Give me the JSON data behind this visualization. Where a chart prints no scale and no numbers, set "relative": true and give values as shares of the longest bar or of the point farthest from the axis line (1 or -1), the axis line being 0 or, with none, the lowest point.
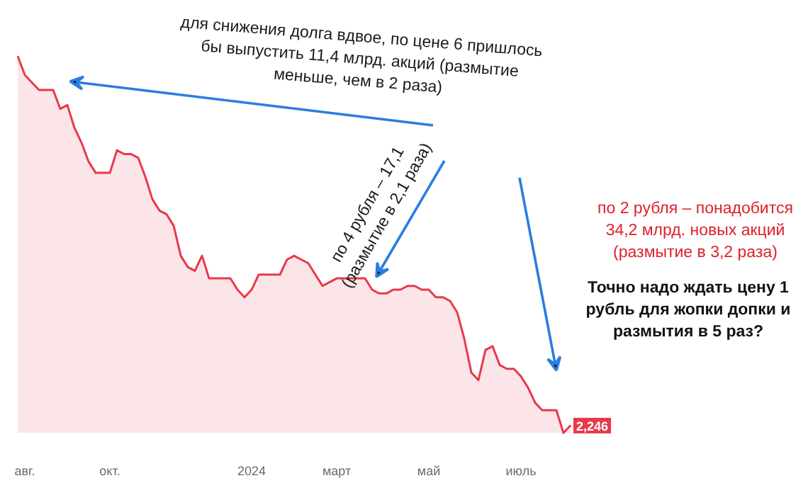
{
  "chart_data": {
    "type": "area",
    "relative": true,
    "color": "#e8394a",
    "categories": [
      null,
      "авг.",
      null,
      null,
      null,
      null,
      null,
      null,
      null,
      null,
      null,
      null,
      null,
      "окт.",
      null,
      null,
      null,
      null,
      null,
      null,
      null,
      null,
      null,
      null,
      null,
      null,
      null,
      null,
      null,
      null,
      null,
      null,
      null,
      "2024",
      null,
      null,
      null,
      null,
      null,
      null,
      null,
      null,
      null,
      null,
      null,
      "март",
      null,
      null,
      null,
      null,
      null,
      null,
      null,
      null,
      null,
      null,
      null,
      null,
      "май",
      null,
      null,
      null,
      null,
      null,
      null,
      null,
      null,
      null,
      null,
      null,
      null,
      "июль",
      null,
      null,
      null,
      null,
      null,
      null,
      null
    ],
    "values": [
      1.0,
      0.95,
      0.93,
      0.91,
      0.91,
      0.91,
      0.86,
      0.87,
      0.81,
      0.77,
      0.72,
      0.69,
      0.69,
      0.69,
      0.75,
      0.74,
      0.74,
      0.73,
      0.68,
      0.62,
      0.59,
      0.58,
      0.55,
      0.47,
      0.44,
      0.43,
      0.47,
      0.41,
      0.41,
      0.41,
      0.41,
      0.38,
      0.36,
      0.38,
      0.42,
      0.42,
      0.42,
      0.42,
      0.46,
      0.47,
      0.46,
      0.45,
      0.42,
      0.39,
      0.4,
      0.41,
      0.41,
      0.41,
      0.41,
      0.41,
      0.38,
      0.37,
      0.37,
      0.38,
      0.38,
      0.39,
      0.39,
      0.38,
      0.38,
      0.36,
      0.36,
      0.35,
      0.32,
      0.25,
      0.16,
      0.14,
      0.22,
      0.23,
      0.18,
      0.17,
      0.17,
      0.15,
      0.12,
      0.08,
      0.06,
      0.06,
      0.06,
      0.0,
      0.02
    ],
    "annotations": [
      "для снижения долга вдвое, по цене 6 пришлось бы выпустить 11,4 млрд. акций (размытие меньше, чем в 2 раза)",
      "по 4 рубля – 17,1 (размытие в 2,1 раза)",
      "по 2 рубля – понадобится 34,2 млрд. новых акций (размытие в 3,2 раза)",
      "Точно надо ждать цену 1 рубль для жопки допки и размытия в 5 раз?",
      "2,246"
    ]
  }
}
